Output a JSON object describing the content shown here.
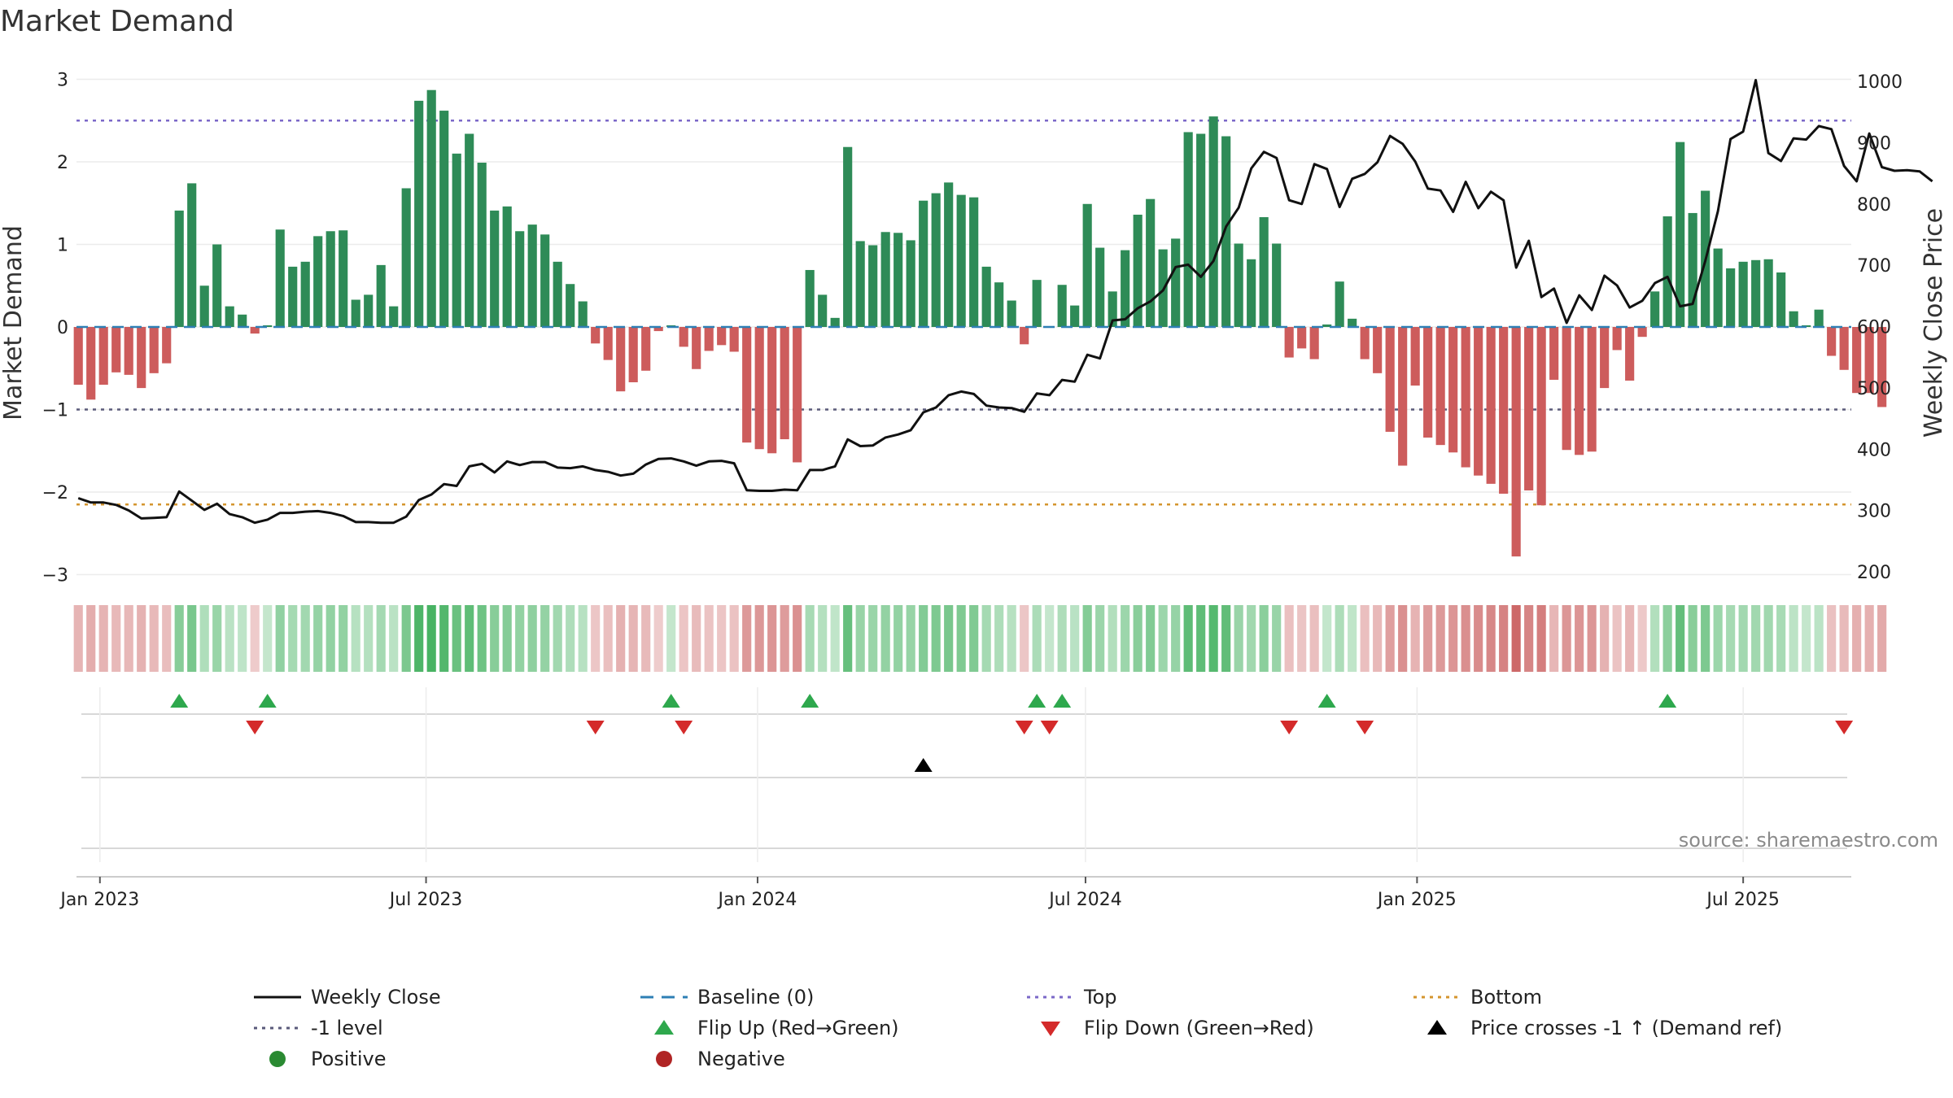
{
  "chart_data": {
    "type": "bar",
    "title": "Market Demand",
    "ylabel_left": "Market Demand",
    "ylabel_right": "Weekly Close Price",
    "ylim_left": [
      -3.1,
      3.2
    ],
    "ylim_right": [
      187,
      1002
    ],
    "yticks_left": [
      3,
      2,
      1,
      0,
      -1,
      -2,
      -3
    ],
    "yticks_left_labels": [
      "3",
      "2",
      "1",
      "0",
      "−1",
      "−2",
      "−3"
    ],
    "yticks_right": [
      1000,
      900,
      800,
      700,
      600,
      500,
      400,
      300,
      200
    ],
    "yticks_right_labels": [
      "1000",
      "900",
      "800",
      "700",
      "600",
      "500",
      "400",
      "300",
      "200"
    ],
    "x_start": "2022-12-19",
    "x_range_days": [
      0,
      985
    ],
    "x_ticks": [
      {
        "label": "Jan 2023",
        "day": 13
      },
      {
        "label": "Jul 2023",
        "day": 194
      },
      {
        "label": "Jan 2024",
        "day": 378
      },
      {
        "label": "Jul 2024",
        "day": 560
      },
      {
        "label": "Jan 2025",
        "day": 744
      },
      {
        "label": "Jul 2025",
        "day": 925
      }
    ],
    "first_week_day": 1,
    "week_days": 7,
    "reference_lines": [
      {
        "name": "Top",
        "value": 2.5,
        "color": "#7b68c8"
      },
      {
        "name": "-1 level",
        "value": -1,
        "color": "#5a5a7a"
      },
      {
        "name": "Bottom",
        "value": -2.15,
        "color": "#d4952e"
      }
    ],
    "demand": [
      -0.7,
      -0.88,
      -0.7,
      -0.55,
      -0.58,
      -0.74,
      -0.56,
      -0.44,
      1.41,
      1.74,
      0.5,
      1.0,
      0.25,
      0.15,
      -0.08,
      0.02,
      1.18,
      0.73,
      0.79,
      1.1,
      1.16,
      1.17,
      0.33,
      0.39,
      0.75,
      0.25,
      1.68,
      2.74,
      2.87,
      2.62,
      2.1,
      2.34,
      1.99,
      1.41,
      1.46,
      1.16,
      1.24,
      1.12,
      0.79,
      0.52,
      0.31,
      -0.2,
      -0.4,
      -0.78,
      -0.67,
      -0.53,
      -0.05,
      0.02,
      -0.24,
      -0.51,
      -0.29,
      -0.22,
      -0.3,
      -1.4,
      -1.48,
      -1.53,
      -1.36,
      -1.64,
      0.69,
      0.39,
      0.11,
      2.18,
      1.04,
      0.99,
      1.15,
      1.14,
      1.05,
      1.53,
      1.62,
      1.75,
      1.6,
      1.57,
      0.73,
      0.54,
      0.32,
      -0.21,
      0.57,
      0.01,
      0.51,
      0.26,
      1.49,
      0.96,
      0.43,
      0.93,
      1.36,
      1.55,
      0.94,
      1.07,
      2.36,
      2.34,
      2.55,
      2.31,
      1.01,
      0.82,
      1.33,
      1.01,
      -0.37,
      -0.26,
      -0.39,
      0.03,
      0.55,
      0.1,
      -0.39,
      -0.56,
      -1.27,
      -1.68,
      -0.71,
      -1.34,
      -1.43,
      -1.52,
      -1.7,
      -1.8,
      -1.9,
      -2.02,
      -2.78,
      -1.98,
      -2.16,
      -0.64,
      -1.49,
      -1.55,
      -1.51,
      -0.74,
      -0.28,
      -0.65,
      -0.12,
      0.43,
      1.34,
      2.24,
      1.38,
      1.65,
      0.95,
      0.71,
      0.79,
      0.81,
      0.82,
      0.66,
      0.19,
      0.02,
      0.21,
      -0.35,
      -0.52,
      -0.8,
      -0.8,
      -0.97
    ],
    "weekly_close": [
      320,
      313,
      313,
      309,
      300,
      287,
      288,
      289,
      331,
      316,
      301,
      311,
      294,
      289,
      280,
      285,
      296,
      296,
      298,
      299,
      296,
      291,
      281,
      281,
      280,
      280,
      290,
      317,
      326,
      343,
      340,
      372,
      376,
      362,
      380,
      374,
      379,
      379,
      370,
      369,
      372,
      366,
      363,
      357,
      360,
      375,
      384,
      385,
      380,
      373,
      380,
      381,
      377,
      333,
      332,
      332,
      334,
      333,
      366,
      366,
      372,
      416,
      405,
      406,
      419,
      424,
      431,
      460,
      468,
      488,
      494,
      490,
      471,
      468,
      467,
      461,
      491,
      488,
      513,
      510,
      554,
      548,
      610,
      612,
      630,
      641,
      659,
      697,
      701,
      681,
      707,
      763,
      794,
      858,
      885,
      875,
      806,
      800,
      865,
      857,
      795,
      841,
      849,
      868,
      911,
      898,
      869,
      825,
      822,
      787,
      836,
      793,
      820,
      806,
      696,
      740,
      648,
      662,
      606,
      651,
      627,
      683,
      667,
      631,
      642,
      671,
      681,
      633,
      637,
      707,
      788,
      906,
      918,
      1002,
      883,
      870,
      907,
      905,
      927,
      922,
      862,
      837,
      915,
      860,
      854,
      855,
      853,
      837
    ],
    "flip_up_weeks": [
      8,
      15,
      47,
      58,
      76,
      78,
      99,
      126
    ],
    "flip_down_weeks": [
      14,
      41,
      48,
      75,
      77,
      96,
      102,
      140
    ],
    "price_cross_weeks": [
      67
    ],
    "source_note": "source: sharemaestro.com",
    "legend": [
      {
        "label": "Weekly Close",
        "kind": "line",
        "color": "#111111"
      },
      {
        "label": "Baseline (0)",
        "kind": "dash",
        "color": "#2e7fb5"
      },
      {
        "label": "Top",
        "kind": "dot",
        "color": "#7b68c8"
      },
      {
        "label": "Bottom",
        "kind": "dot",
        "color": "#d4952e"
      },
      {
        "label": "-1 level",
        "kind": "dot",
        "color": "#5a5a7a"
      },
      {
        "label": "Flip Up (Red→Green)",
        "kind": "triup",
        "color": "#2ea84d"
      },
      {
        "label": "Flip Down (Green→Red)",
        "kind": "tridown",
        "color": "#d42a2a"
      },
      {
        "label": "Price crosses -1 ↑ (Demand ref)",
        "kind": "triup",
        "color": "#000000"
      },
      {
        "label": "Positive",
        "kind": "circle",
        "color": "#2a8a32"
      },
      {
        "label": "Negative",
        "kind": "circle",
        "color": "#b02424"
      }
    ]
  },
  "colors": {
    "positive_bar": "#2e8b57",
    "negative_bar": "#cd5c5c",
    "grid": "#ececec"
  }
}
